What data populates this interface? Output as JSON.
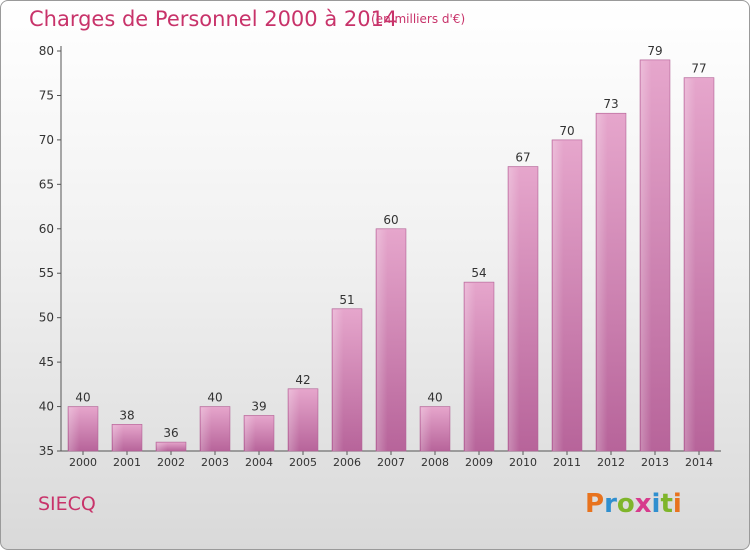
{
  "title": "Charges de Personnel 2000 à 2014",
  "subtitle": "(en milliers d'€)",
  "commune": "SIECQ",
  "logo": {
    "letters": [
      "P",
      "r",
      "o",
      "x",
      "i",
      "t",
      "i"
    ],
    "colors": [
      "#e8731e",
      "#2f8fcf",
      "#7fb52b",
      "#d73b8c",
      "#2f8fcf",
      "#7fb52b",
      "#e8731e"
    ]
  },
  "chart_data": {
    "type": "bar",
    "title": "Charges de Personnel 2000 à 2014",
    "subtitle": "(en milliers d'€)",
    "categories": [
      "2000",
      "2001",
      "2002",
      "2003",
      "2004",
      "2005",
      "2006",
      "2007",
      "2008",
      "2009",
      "2010",
      "2011",
      "2012",
      "2013",
      "2014"
    ],
    "values": [
      40,
      38,
      36,
      40,
      39,
      42,
      51,
      60,
      40,
      54,
      67,
      70,
      73,
      79,
      77
    ],
    "ylim": [
      35,
      80
    ],
    "yticks": [
      35,
      40,
      45,
      50,
      55,
      60,
      65,
      70,
      75,
      80
    ],
    "grid": false,
    "bar_color": "#d88db8"
  }
}
